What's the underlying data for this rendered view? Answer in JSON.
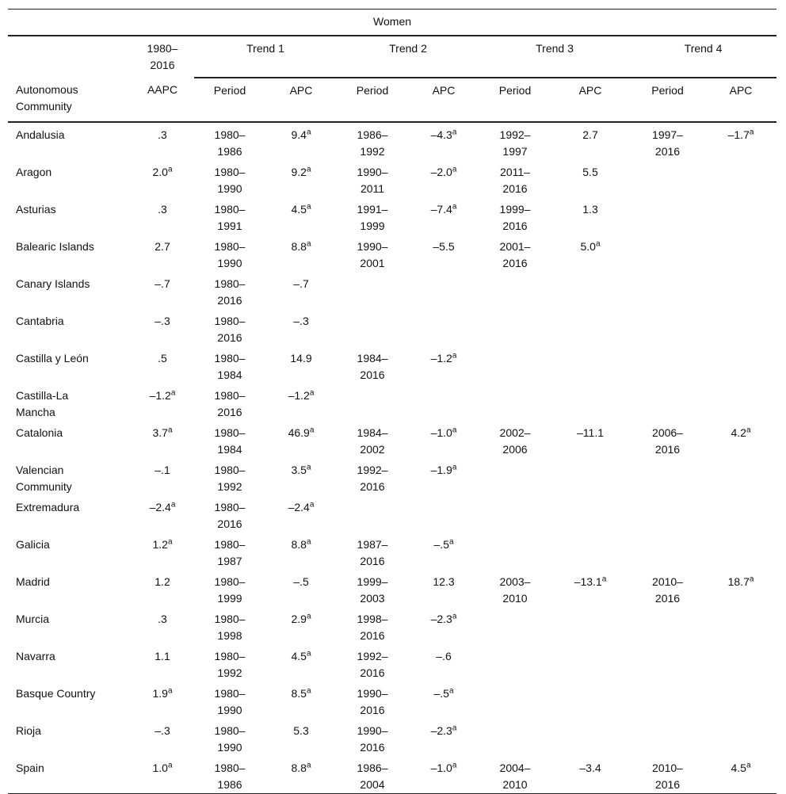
{
  "table": {
    "title": "Women",
    "group_headers": [
      "1980–2016",
      "Trend 1",
      "Trend 2",
      "Trend 3",
      "Trend 4"
    ],
    "column_headers": [
      "Autonomous Community",
      "AAPC",
      "Period",
      "APC",
      "Period",
      "APC",
      "Period",
      "APC",
      "Period",
      "APC"
    ],
    "rows": [
      {
        "name": "Andalusia",
        "cells": [
          ".3",
          "1980–1986",
          {
            "text": "9.4",
            "sup": "a"
          },
          "1986–1992",
          {
            "text": "–4.3",
            "sup": "a"
          },
          "1992–1997",
          "2.7",
          "1997–2016",
          {
            "text": "–1.7",
            "sup": "a"
          }
        ]
      },
      {
        "name": "Aragon",
        "cells": [
          {
            "text": "2.0",
            "sup": "a"
          },
          "1980–1990",
          {
            "text": "9.2",
            "sup": "a"
          },
          "1990–2011",
          {
            "text": "–2.0",
            "sup": "a"
          },
          "2011–2016",
          "5.5"
        ]
      },
      {
        "name": "Asturias",
        "cells": [
          ".3",
          "1980–1991",
          {
            "text": "4.5",
            "sup": "a"
          },
          "1991–1999",
          {
            "text": "–7.4",
            "sup": "a"
          },
          "1999–2016",
          "1.3"
        ]
      },
      {
        "name": "Balearic Islands",
        "cells": [
          "2.7",
          "1980–1990",
          {
            "text": "8.8",
            "sup": "a"
          },
          "1990–2001",
          "–5.5",
          "2001–2016",
          {
            "text": "5.0",
            "sup": "a"
          }
        ]
      },
      {
        "name": "Canary Islands",
        "cells": [
          "–.7",
          "1980–2016",
          "–.7"
        ]
      },
      {
        "name": "Cantabria",
        "cells": [
          "–.3",
          "1980–2016",
          "–.3"
        ]
      },
      {
        "name": "Castilla y León",
        "cells": [
          ".5",
          "1980–1984",
          "14.9",
          "1984–2016",
          {
            "text": "–1.2",
            "sup": "a"
          }
        ]
      },
      {
        "name": "Castilla-La Mancha",
        "cells": [
          {
            "text": "–1.2",
            "sup": "a"
          },
          "1980–2016",
          {
            "text": "–1.2",
            "sup": "a"
          }
        ]
      },
      {
        "name": "Catalonia",
        "cells": [
          {
            "text": "3.7",
            "sup": "a"
          },
          "1980–1984",
          {
            "text": "46.9",
            "sup": "a"
          },
          "1984–2002",
          {
            "text": "–1.0",
            "sup": "a"
          },
          "2002–2006",
          "–11.1",
          "2006–2016",
          {
            "text": "4.2",
            "sup": "a"
          }
        ]
      },
      {
        "name": "Valencian Community",
        "cells": [
          "–.1",
          "1980–1992",
          {
            "text": "3.5",
            "sup": "a"
          },
          "1992–2016",
          {
            "text": "–1.9",
            "sup": "a"
          }
        ]
      },
      {
        "name": "Extremadura",
        "cells": [
          {
            "text": "–2.4",
            "sup": "a"
          },
          "1980–2016",
          {
            "text": "–2.4",
            "sup": "a"
          }
        ]
      },
      {
        "name": "Galicia",
        "cells": [
          {
            "text": "1.2",
            "sup": "a"
          },
          "1980–1987",
          {
            "text": "8.8",
            "sup": "a"
          },
          "1987–2016",
          {
            "text": "–.5",
            "sup": "a"
          }
        ]
      },
      {
        "name": "Madrid",
        "cells": [
          "1.2",
          "1980–1999",
          "–.5",
          "1999–2003",
          "12.3",
          "2003–2010",
          {
            "text": "–13.1",
            "sup": "a"
          },
          "2010–2016",
          {
            "text": "18.7",
            "sup": "a"
          }
        ]
      },
      {
        "name": "Murcia",
        "cells": [
          ".3",
          "1980–1998",
          {
            "text": "2.9",
            "sup": "a"
          },
          "1998–2016",
          {
            "text": "–2.3",
            "sup": "a"
          }
        ]
      },
      {
        "name": "Navarra",
        "cells": [
          "1.1",
          "1980–1992",
          {
            "text": "4.5",
            "sup": "a"
          },
          "1992–2016",
          "–.6"
        ]
      },
      {
        "name": "Basque Country",
        "cells": [
          {
            "text": "1.9",
            "sup": "a"
          },
          "1980–1990",
          {
            "text": "8.5",
            "sup": "a"
          },
          "1990–2016",
          {
            "text": "–.5",
            "sup": "a"
          }
        ]
      },
      {
        "name": "Rioja",
        "cells": [
          "–.3",
          "1980–1990",
          "5.3",
          "1990–2016",
          {
            "text": "–2.3",
            "sup": "a"
          }
        ]
      },
      {
        "name": "Spain",
        "cells": [
          {
            "text": "1.0",
            "sup": "a"
          },
          "1980–1986",
          {
            "text": "8.8",
            "sup": "a"
          },
          "1986–2004",
          {
            "text": "–1.0",
            "sup": "a"
          },
          "2004–2010",
          "–3.4",
          "2010–2016",
          {
            "text": "4.5",
            "sup": "a"
          }
        ]
      }
    ]
  }
}
